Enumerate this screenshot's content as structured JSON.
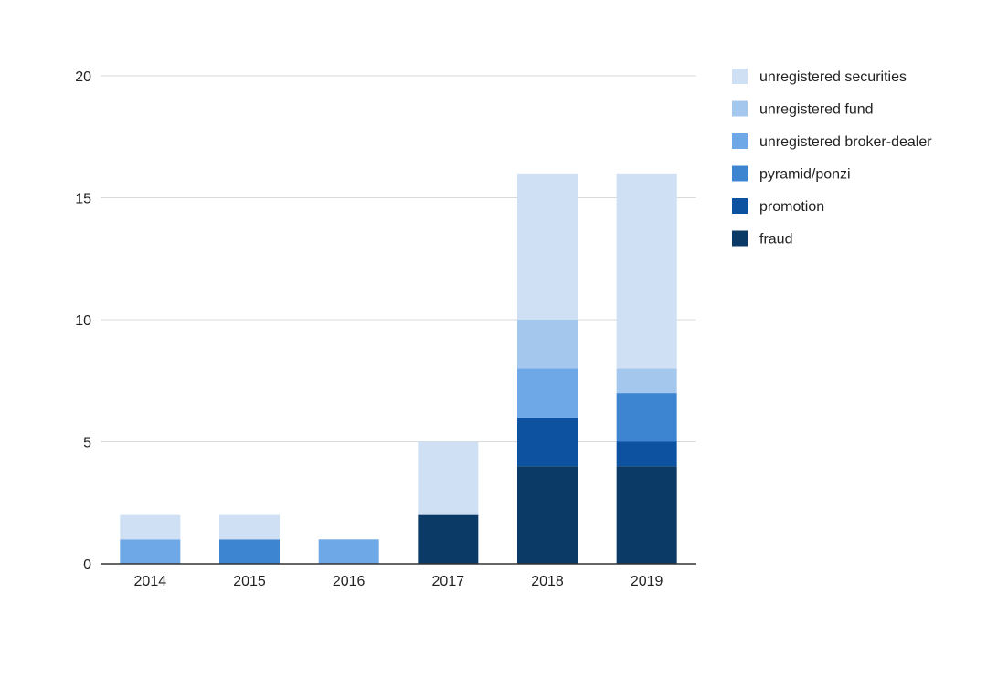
{
  "chart_data": {
    "type": "bar",
    "stacked": true,
    "categories": [
      "2014",
      "2015",
      "2016",
      "2017",
      "2018",
      "2019"
    ],
    "series": [
      {
        "name": "fraud",
        "color": "#0b3a66",
        "values": [
          0,
          0,
          0,
          2,
          4,
          4
        ]
      },
      {
        "name": "promotion",
        "color": "#0d52a0",
        "values": [
          0,
          0,
          0,
          0,
          2,
          1
        ]
      },
      {
        "name": "pyramid/ponzi",
        "color": "#3d85d0",
        "values": [
          0,
          1,
          0,
          0,
          0,
          2
        ]
      },
      {
        "name": "unregistered broker-dealer",
        "color": "#6fa8e6",
        "values": [
          1,
          0,
          1,
          0,
          2,
          0
        ]
      },
      {
        "name": "unregistered fund",
        "color": "#a4c7ee",
        "values": [
          0,
          0,
          0,
          0,
          2,
          1
        ]
      },
      {
        "name": "unregistered securities",
        "color": "#cfe0f4",
        "values": [
          1,
          1,
          0,
          3,
          6,
          8
        ]
      }
    ],
    "legend_order": [
      "unregistered securities",
      "unregistered fund",
      "unregistered broker-dealer",
      "pyramid/ponzi",
      "promotion",
      "fraud"
    ],
    "y_ticks": [
      "0",
      "5",
      "10",
      "15",
      "20"
    ],
    "ylim": [
      0,
      20
    ],
    "title": "",
    "xlabel": "",
    "ylabel": "",
    "grid": true,
    "legend_position": "top-right"
  }
}
